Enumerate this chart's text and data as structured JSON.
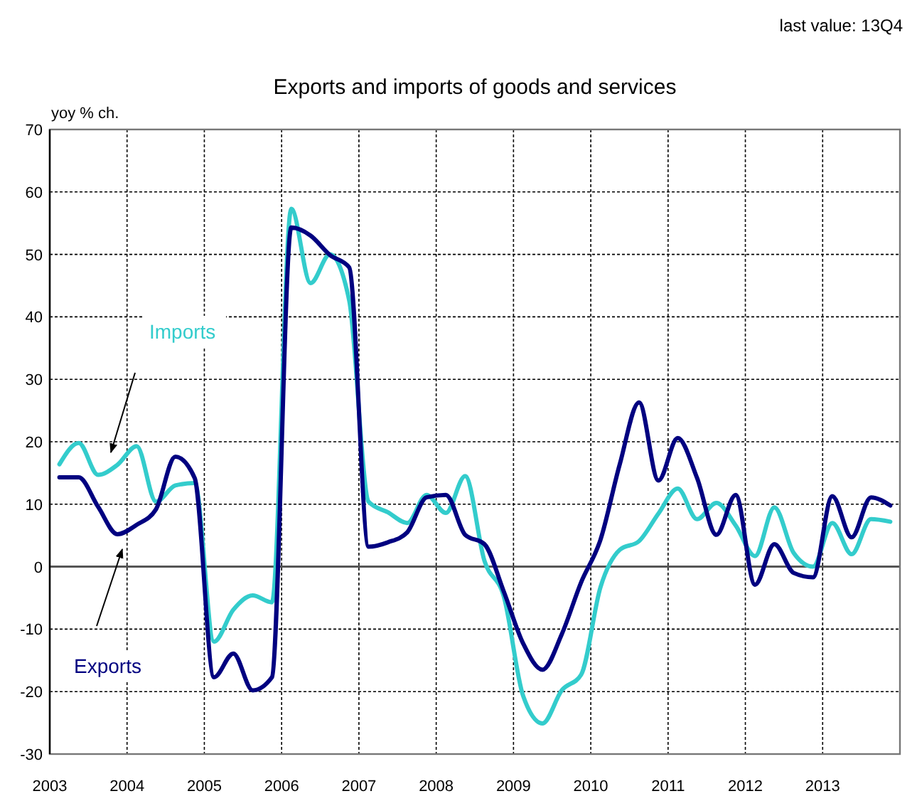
{
  "chart_data": {
    "type": "line",
    "title": "Exports and imports of goods and services",
    "ylabel": "yoy % ch.",
    "annotations": [
      "last value: 13Q4"
    ],
    "xlim": [
      2003,
      2014
    ],
    "xticks": [
      2003,
      2004,
      2005,
      2006,
      2007,
      2008,
      2009,
      2010,
      2011,
      2012,
      2013
    ],
    "ylim": [
      -30,
      70
    ],
    "yticks": [
      -30,
      -20,
      -10,
      0,
      10,
      20,
      30,
      40,
      50,
      60,
      70
    ],
    "grid": true,
    "legend": false,
    "x": [
      2003.125,
      2003.375,
      2003.625,
      2003.875,
      2004.125,
      2004.375,
      2004.625,
      2004.875,
      2005.125,
      2005.375,
      2005.625,
      2005.875,
      2006.125,
      2006.375,
      2006.625,
      2006.875,
      2007.125,
      2007.375,
      2007.625,
      2007.875,
      2008.125,
      2008.375,
      2008.625,
      2008.875,
      2009.125,
      2009.375,
      2009.625,
      2009.875,
      2010.125,
      2010.375,
      2010.625,
      2010.875,
      2011.125,
      2011.375,
      2011.625,
      2011.875,
      2012.125,
      2012.375,
      2012.625,
      2012.875,
      2013.125,
      2013.375,
      2013.625,
      2013.875
    ],
    "series": [
      {
        "name": "Imports",
        "color": "#33cccc",
        "values": [
          16.4,
          19.8,
          14.7,
          16.3,
          19.3,
          10.4,
          13.0,
          13.4,
          -12.0,
          -6.9,
          -4.6,
          -5.7,
          57.3,
          45.4,
          50.0,
          42.6,
          10.4,
          8.7,
          7.0,
          11.5,
          8.6,
          14.5,
          0.9,
          -4.8,
          -20.7,
          -25.1,
          -19.8,
          -17.3,
          -3.3,
          2.7,
          4.1,
          8.5,
          12.5,
          7.6,
          10.2,
          6.6,
          1.7,
          9.5,
          2.2,
          0.0,
          7.0,
          2.0,
          7.6,
          7.2
        ]
      },
      {
        "name": "Exports",
        "color": "#000080",
        "values": [
          14.3,
          14.3,
          9.6,
          5.2,
          6.7,
          9.2,
          17.6,
          14.2,
          -17.7,
          -13.9,
          -19.8,
          -17.7,
          54.3,
          53.0,
          49.9,
          47.9,
          3.2,
          3.9,
          5.5,
          11.1,
          11.5,
          5.1,
          3.6,
          -4.0,
          -12.3,
          -16.5,
          -10.8,
          -2.5,
          4.3,
          16.4,
          26.3,
          13.8,
          20.6,
          14.2,
          5.1,
          11.5,
          -2.9,
          3.6,
          -1.0,
          -1.7,
          11.3,
          4.7,
          11.1,
          9.8
        ]
      }
    ]
  }
}
